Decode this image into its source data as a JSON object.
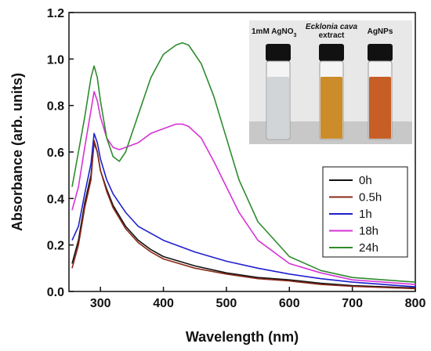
{
  "chart_data": {
    "type": "line",
    "title": "",
    "xlabel": "Wavelength (nm)",
    "ylabel": "Absorbance (arb. units)",
    "xlim": [
      250,
      800
    ],
    "ylim": [
      0.0,
      1.2
    ],
    "x_ticks": [
      "300",
      "400",
      "500",
      "600",
      "700",
      "800"
    ],
    "y_ticks": [
      "0.0",
      "0.2",
      "0.4",
      "0.6",
      "0.8",
      "1.0",
      "1.2"
    ],
    "grid": false,
    "legend_position": "center-right",
    "series": [
      {
        "name": "0h",
        "color": "#111111",
        "x": [
          255,
          265,
          275,
          285,
          290,
          295,
          300,
          310,
          320,
          340,
          360,
          380,
          400,
          450,
          500,
          550,
          600,
          650,
          700,
          750,
          800
        ],
        "y": [
          0.12,
          0.22,
          0.38,
          0.5,
          0.64,
          0.6,
          0.52,
          0.44,
          0.37,
          0.28,
          0.22,
          0.18,
          0.15,
          0.11,
          0.08,
          0.06,
          0.05,
          0.035,
          0.025,
          0.02,
          0.015
        ]
      },
      {
        "name": "0.5h",
        "color": "#8b2a1a",
        "x": [
          255,
          265,
          275,
          285,
          290,
          295,
          300,
          310,
          320,
          340,
          360,
          380,
          400,
          450,
          500,
          550,
          600,
          650,
          700,
          750,
          800
        ],
        "y": [
          0.1,
          0.2,
          0.36,
          0.48,
          0.65,
          0.6,
          0.52,
          0.43,
          0.36,
          0.27,
          0.21,
          0.17,
          0.14,
          0.1,
          0.075,
          0.055,
          0.045,
          0.03,
          0.022,
          0.017,
          0.012
        ]
      },
      {
        "name": "1h",
        "color": "#1f1fcf",
        "x": [
          255,
          265,
          275,
          285,
          290,
          295,
          300,
          310,
          320,
          340,
          360,
          380,
          400,
          450,
          500,
          550,
          600,
          650,
          700,
          750,
          800
        ],
        "y": [
          0.22,
          0.28,
          0.42,
          0.55,
          0.68,
          0.64,
          0.57,
          0.48,
          0.42,
          0.34,
          0.28,
          0.25,
          0.22,
          0.17,
          0.13,
          0.1,
          0.075,
          0.055,
          0.04,
          0.03,
          0.02
        ]
      },
      {
        "name": "18h",
        "color": "#d633d6",
        "x": [
          255,
          265,
          275,
          285,
          290,
          295,
          300,
          310,
          320,
          330,
          340,
          360,
          380,
          400,
          420,
          430,
          440,
          460,
          480,
          500,
          520,
          550,
          600,
          650,
          700,
          750,
          800
        ],
        "y": [
          0.35,
          0.45,
          0.62,
          0.78,
          0.86,
          0.82,
          0.75,
          0.66,
          0.62,
          0.61,
          0.62,
          0.64,
          0.68,
          0.7,
          0.72,
          0.72,
          0.71,
          0.66,
          0.56,
          0.45,
          0.34,
          0.22,
          0.12,
          0.08,
          0.05,
          0.04,
          0.03
        ]
      },
      {
        "name": "24h",
        "color": "#2e8b2e",
        "x": [
          255,
          265,
          275,
          285,
          290,
          295,
          300,
          310,
          320,
          330,
          340,
          360,
          380,
          400,
          420,
          430,
          440,
          460,
          480,
          500,
          520,
          550,
          600,
          650,
          700,
          750,
          800
        ],
        "y": [
          0.45,
          0.6,
          0.75,
          0.92,
          0.97,
          0.92,
          0.82,
          0.66,
          0.58,
          0.56,
          0.6,
          0.76,
          0.92,
          1.02,
          1.06,
          1.07,
          1.06,
          0.98,
          0.84,
          0.66,
          0.48,
          0.3,
          0.15,
          0.09,
          0.06,
          0.05,
          0.04
        ]
      }
    ]
  },
  "inset": {
    "labels": [
      {
        "text": "1mM AgNO",
        "sub": "3",
        "italic": false
      },
      {
        "text": "Ecklonia cava",
        "sub": "",
        "italic": true
      },
      {
        "text": "extract",
        "sub": "",
        "italic": false
      },
      {
        "text": "AgNPs",
        "sub": "",
        "italic": false
      }
    ],
    "vials": [
      {
        "cap": "#111111",
        "liquid": "#cfd3d6"
      },
      {
        "cap": "#111111",
        "liquid": "#c9861e"
      },
      {
        "cap": "#111111",
        "liquid": "#c4551a"
      }
    ]
  }
}
